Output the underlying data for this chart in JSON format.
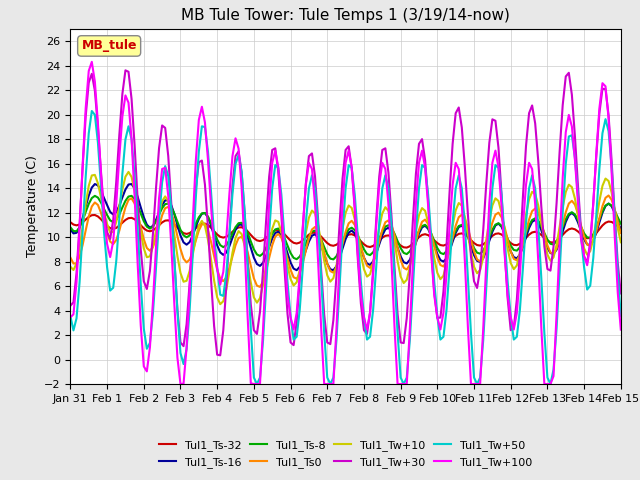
{
  "title": "MB Tule Tower: Tule Temps 1 (3/19/14-now)",
  "ylabel": "Temperature (C)",
  "ylim": [
    -2,
    27
  ],
  "yticks": [
    -2,
    0,
    2,
    4,
    6,
    8,
    10,
    12,
    14,
    16,
    18,
    20,
    22,
    24,
    26
  ],
  "x_labels": [
    "Jan 31",
    "Feb 1",
    "Feb 2",
    "Feb 3",
    "Feb 4",
    "Feb 5",
    "Feb 6",
    "Feb 7",
    "Feb 8",
    "Feb 9",
    "Feb 10",
    "Feb 11",
    "Feb 12",
    "Feb 13",
    "Feb 14",
    "Feb 15"
  ],
  "x_tick_positions": [
    0,
    1,
    2,
    3,
    4,
    5,
    6,
    7,
    8,
    9,
    10,
    11,
    12,
    13,
    14,
    15
  ],
  "annotation_box": "MB_tule",
  "annotation_color": "#cc0000",
  "annotation_bg": "#ffff99",
  "series": [
    {
      "label": "Tul1_Ts-32",
      "color": "#cc0000",
      "lw": 1.5
    },
    {
      "label": "Tul1_Ts-16",
      "color": "#000099",
      "lw": 1.5
    },
    {
      "label": "Tul1_Ts-8",
      "color": "#00aa00",
      "lw": 1.5
    },
    {
      "label": "Tul1_Ts0",
      "color": "#ff8800",
      "lw": 1.5
    },
    {
      "label": "Tul1_Tw+10",
      "color": "#cccc00",
      "lw": 1.5
    },
    {
      "label": "Tul1_Tw+30",
      "color": "#cc00cc",
      "lw": 1.5
    },
    {
      "label": "Tul1_Tw+50",
      "color": "#00cccc",
      "lw": 1.5
    },
    {
      "label": "Tul1_Tw+100",
      "color": "#ff00ff",
      "lw": 1.5
    }
  ],
  "bg_color": "#e8e8e8",
  "plot_bg_color": "#ffffff",
  "grid_color": "#cccccc",
  "title_fontsize": 11,
  "tick_fontsize": 8,
  "legend_fontsize": 8
}
